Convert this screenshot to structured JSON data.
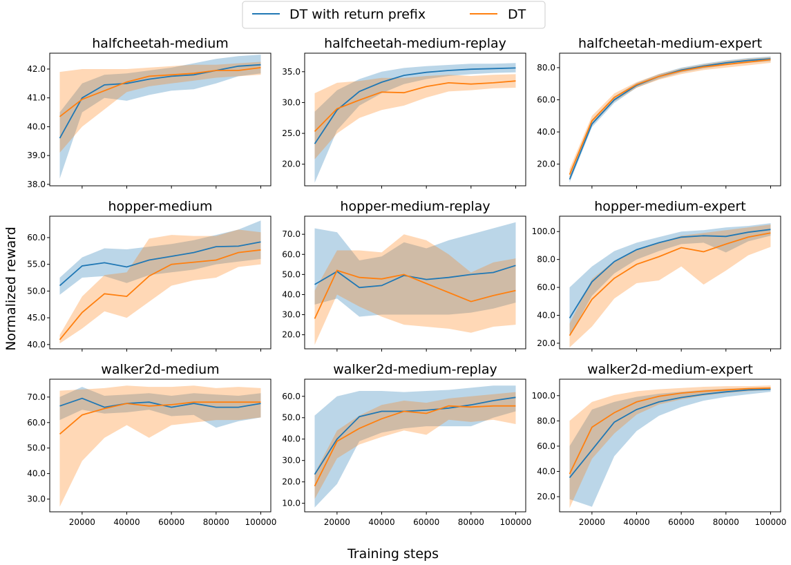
{
  "figure": {
    "xlabel": "Training steps",
    "ylabel": "Normalized reward",
    "x_ticks": [
      "20000",
      "40000",
      "60000",
      "80000",
      "100000"
    ],
    "legend": [
      "DT with return prefix",
      "DT"
    ],
    "legend_location": "top-center"
  },
  "colors": {
    "prefix": "#1f77b4",
    "dt": "#ff7f0e",
    "prefix_band": "#1f77b4",
    "dt_band": "#ff7f0e"
  },
  "chart_data": [
    {
      "type": "line",
      "title": "halfcheetah-medium",
      "x": [
        10000,
        20000,
        30000,
        40000,
        50000,
        60000,
        70000,
        80000,
        90000,
        100000
      ],
      "ylim": [
        37.95,
        42.55
      ],
      "yticks": [
        38.0,
        39.0,
        40.0,
        41.0,
        42.0
      ],
      "ytick_labels": [
        "38.0",
        "39.0",
        "40.0",
        "41.0",
        "42.0"
      ],
      "series": [
        {
          "name": "DT with return prefix",
          "values": [
            39.6,
            41.0,
            41.45,
            41.5,
            41.65,
            41.75,
            41.8,
            41.95,
            42.1,
            42.15
          ],
          "lower": [
            38.2,
            40.5,
            41.0,
            40.9,
            41.1,
            41.25,
            41.3,
            41.5,
            41.75,
            41.85
          ],
          "upper": [
            40.5,
            41.5,
            41.8,
            41.85,
            41.95,
            42.05,
            42.2,
            42.35,
            42.45,
            42.5
          ]
        },
        {
          "name": "DT",
          "values": [
            40.35,
            40.95,
            41.25,
            41.55,
            41.75,
            41.8,
            41.85,
            41.95,
            41.95,
            42.05
          ],
          "lower": [
            39.1,
            40.0,
            40.6,
            41.2,
            41.4,
            41.5,
            41.6,
            41.7,
            41.75,
            41.8
          ],
          "upper": [
            41.9,
            42.0,
            42.0,
            42.0,
            42.05,
            42.1,
            42.15,
            42.15,
            42.2,
            42.25
          ]
        }
      ]
    },
    {
      "type": "line",
      "title": "halfcheetah-medium-replay",
      "x": [
        10000,
        20000,
        30000,
        40000,
        50000,
        60000,
        70000,
        80000,
        90000,
        100000
      ],
      "ylim": [
        16.5,
        38.0
      ],
      "yticks": [
        20.0,
        25.0,
        30.0,
        35.0
      ],
      "ytick_labels": [
        "20.0",
        "25.0",
        "30.0",
        "35.0"
      ],
      "series": [
        {
          "name": "DT with return prefix",
          "values": [
            23.3,
            28.8,
            31.8,
            33.3,
            34.4,
            34.9,
            35.2,
            35.4,
            35.5,
            35.6
          ],
          "lower": [
            17.0,
            25.5,
            29.5,
            31.5,
            33.0,
            33.8,
            34.3,
            34.6,
            34.8,
            34.9
          ],
          "upper": [
            28.5,
            32.0,
            33.8,
            35.0,
            35.6,
            35.9,
            36.1,
            36.3,
            36.3,
            36.4
          ]
        },
        {
          "name": "DT",
          "values": [
            25.3,
            29.0,
            30.4,
            31.7,
            31.6,
            32.6,
            33.2,
            33.0,
            33.2,
            33.5
          ],
          "lower": [
            20.8,
            25.0,
            27.5,
            28.8,
            29.5,
            30.8,
            31.8,
            32.0,
            32.3,
            32.4
          ],
          "upper": [
            31.5,
            33.2,
            33.5,
            34.0,
            34.0,
            34.3,
            34.5,
            34.3,
            34.5,
            34.6
          ]
        }
      ]
    },
    {
      "type": "line",
      "title": "halfcheetah-medium-expert",
      "x": [
        10000,
        20000,
        30000,
        40000,
        50000,
        60000,
        70000,
        80000,
        90000,
        100000
      ],
      "ylim": [
        6.5,
        89.0
      ],
      "yticks": [
        20.0,
        40.0,
        60.0,
        80.0
      ],
      "ytick_labels": [
        "20.0",
        "40.0",
        "60.0",
        "80.0"
      ],
      "series": [
        {
          "name": "DT with return prefix",
          "values": [
            10.5,
            45.0,
            60.0,
            69.0,
            74.5,
            78.5,
            81.0,
            83.0,
            84.5,
            85.5
          ],
          "lower": [
            8.5,
            43.0,
            58.0,
            67.5,
            73.0,
            77.0,
            79.5,
            81.5,
            83.0,
            84.0
          ],
          "upper": [
            12.5,
            47.0,
            62.0,
            70.5,
            76.0,
            80.0,
            82.5,
            84.5,
            86.0,
            87.0
          ]
        },
        {
          "name": "DT",
          "values": [
            13.5,
            47.0,
            61.5,
            69.5,
            74.5,
            78.0,
            80.5,
            82.0,
            83.5,
            85.0
          ],
          "lower": [
            10.5,
            44.5,
            59.0,
            67.5,
            72.5,
            76.0,
            78.5,
            80.0,
            81.5,
            83.0
          ],
          "upper": [
            17.0,
            50.0,
            64.0,
            71.0,
            76.0,
            79.5,
            82.0,
            84.0,
            85.5,
            86.5
          ]
        }
      ]
    },
    {
      "type": "line",
      "title": "hopper-medium",
      "x": [
        10000,
        20000,
        30000,
        40000,
        50000,
        60000,
        70000,
        80000,
        90000,
        100000
      ],
      "ylim": [
        39.2,
        64.0
      ],
      "yticks": [
        40.0,
        45.0,
        50.0,
        55.0,
        60.0
      ],
      "ytick_labels": [
        "40.0",
        "45.0",
        "50.0",
        "55.0",
        "60.0"
      ],
      "series": [
        {
          "name": "DT with return prefix",
          "values": [
            51.0,
            54.7,
            55.3,
            54.5,
            55.8,
            56.5,
            57.2,
            58.3,
            58.4,
            59.2
          ],
          "lower": [
            49.3,
            52.5,
            52.8,
            51.5,
            53.0,
            53.5,
            54.0,
            55.0,
            55.5,
            56.0
          ],
          "upper": [
            52.5,
            56.3,
            58.0,
            57.8,
            58.3,
            58.8,
            59.5,
            60.5,
            61.5,
            63.2
          ]
        },
        {
          "name": "DT",
          "values": [
            40.9,
            46.0,
            49.5,
            49.0,
            52.8,
            55.0,
            55.4,
            55.8,
            57.2,
            57.7
          ],
          "lower": [
            40.2,
            43.0,
            46.2,
            45.0,
            48.0,
            51.0,
            52.0,
            52.5,
            54.5,
            55.0
          ],
          "upper": [
            41.8,
            49.0,
            53.0,
            53.5,
            59.8,
            60.5,
            60.3,
            60.3,
            61.5,
            61.0
          ]
        }
      ]
    },
    {
      "type": "line",
      "title": "hopper-medium-replay",
      "x": [
        10000,
        20000,
        30000,
        40000,
        50000,
        60000,
        70000,
        80000,
        90000,
        100000
      ],
      "ylim": [
        13.0,
        79.0
      ],
      "yticks": [
        20.0,
        30.0,
        40.0,
        50.0,
        60.0,
        70.0
      ],
      "ytick_labels": [
        "20.0",
        "30.0",
        "40.0",
        "50.0",
        "60.0",
        "70.0"
      ],
      "series": [
        {
          "name": "DT with return prefix",
          "values": [
            45.0,
            51.5,
            43.5,
            44.5,
            49.5,
            47.5,
            48.5,
            50.0,
            51.0,
            54.5
          ],
          "lower": [
            35.0,
            38.0,
            29.0,
            30.0,
            30.0,
            30.0,
            30.0,
            31.0,
            33.0,
            36.0
          ],
          "upper": [
            73.0,
            71.0,
            57.0,
            59.0,
            66.0,
            63.0,
            67.0,
            70.0,
            73.0,
            76.0
          ]
        },
        {
          "name": "DT",
          "values": [
            28.0,
            52.0,
            48.5,
            47.8,
            50.0,
            45.5,
            41.0,
            36.5,
            39.5,
            42.0
          ],
          "lower": [
            15.0,
            40.0,
            34.0,
            29.0,
            25.0,
            24.0,
            23.0,
            21.0,
            24.0,
            25.0
          ],
          "upper": [
            42.0,
            62.0,
            62.0,
            61.0,
            70.0,
            67.0,
            60.0,
            51.0,
            56.0,
            58.0
          ]
        }
      ]
    },
    {
      "type": "line",
      "title": "hopper-medium-expert",
      "x": [
        10000,
        20000,
        30000,
        40000,
        50000,
        60000,
        70000,
        80000,
        90000,
        100000
      ],
      "ylim": [
        16.0,
        111.0
      ],
      "yticks": [
        20.0,
        40.0,
        60.0,
        80.0,
        100.0
      ],
      "ytick_labels": [
        "20.0",
        "40.0",
        "60.0",
        "80.0",
        "100.0"
      ],
      "series": [
        {
          "name": "DT with return prefix",
          "values": [
            38.0,
            64.0,
            78.5,
            87.0,
            92.0,
            96.0,
            97.0,
            96.5,
            99.5,
            101.5
          ],
          "lower": [
            25.0,
            54.0,
            70.0,
            80.0,
            86.0,
            91.0,
            92.0,
            85.0,
            93.0,
            97.0
          ],
          "upper": [
            60.0,
            75.0,
            86.0,
            92.0,
            96.0,
            100.0,
            101.0,
            103.0,
            104.0,
            106.0
          ]
        },
        {
          "name": "DT",
          "values": [
            25.5,
            51.5,
            66.5,
            76.5,
            82.0,
            88.5,
            85.5,
            91.0,
            96.0,
            99.0
          ],
          "lower": [
            17.0,
            32.0,
            52.0,
            63.0,
            65.0,
            75.0,
            62.0,
            72.0,
            83.0,
            89.0
          ],
          "upper": [
            34.0,
            66.0,
            79.0,
            87.0,
            92.0,
            97.0,
            99.0,
            101.0,
            103.0,
            105.0
          ]
        }
      ]
    },
    {
      "type": "line",
      "title": "walker2d-medium",
      "x": [
        10000,
        20000,
        30000,
        40000,
        50000,
        60000,
        70000,
        80000,
        90000,
        100000
      ],
      "ylim": [
        25.0,
        77.0
      ],
      "yticks": [
        30.0,
        40.0,
        50.0,
        60.0,
        70.0
      ],
      "ytick_labels": [
        "30.0",
        "40.0",
        "50.0",
        "60.0",
        "70.0"
      ],
      "series": [
        {
          "name": "DT with return prefix",
          "values": [
            66.5,
            69.5,
            66.0,
            67.5,
            68.0,
            66.0,
            67.5,
            66.0,
            66.0,
            67.5
          ],
          "lower": [
            61.0,
            65.0,
            63.5,
            64.0,
            65.0,
            62.5,
            63.0,
            58.0,
            60.5,
            62.0
          ],
          "upper": [
            70.0,
            74.0,
            70.5,
            71.0,
            71.5,
            70.5,
            71.5,
            71.0,
            70.5,
            71.5
          ]
        },
        {
          "name": "DT",
          "values": [
            55.5,
            63.0,
            65.5,
            67.5,
            66.5,
            67.0,
            68.0,
            68.0,
            68.0,
            68.0
          ],
          "lower": [
            27.0,
            45.0,
            54.0,
            59.0,
            54.0,
            59.0,
            60.0,
            61.0,
            61.0,
            62.0
          ],
          "upper": [
            72.5,
            73.0,
            73.5,
            74.5,
            74.0,
            74.0,
            74.5,
            73.5,
            74.0,
            73.5
          ]
        }
      ]
    },
    {
      "type": "line",
      "title": "walker2d-medium-replay",
      "x": [
        10000,
        20000,
        30000,
        40000,
        50000,
        60000,
        70000,
        80000,
        90000,
        100000
      ],
      "ylim": [
        6.0,
        68.0
      ],
      "yticks": [
        10.0,
        20.0,
        30.0,
        40.0,
        50.0,
        60.0
      ],
      "ytick_labels": [
        "10.0",
        "20.0",
        "30.0",
        "40.0",
        "50.0",
        "60.0"
      ],
      "series": [
        {
          "name": "DT with return prefix",
          "values": [
            23.5,
            40.0,
            50.5,
            53.0,
            53.0,
            53.5,
            54.5,
            56.0,
            58.0,
            59.5
          ],
          "lower": [
            8.0,
            19.0,
            39.0,
            43.0,
            45.0,
            46.0,
            46.0,
            46.0,
            50.0,
            53.0
          ],
          "upper": [
            51.0,
            60.0,
            62.5,
            62.5,
            62.0,
            62.5,
            63.0,
            64.0,
            65.0,
            65.0
          ]
        },
        {
          "name": "DT",
          "values": [
            18.0,
            39.0,
            45.0,
            49.5,
            53.0,
            52.0,
            55.5,
            55.0,
            55.5,
            55.5
          ],
          "lower": [
            12.0,
            31.0,
            37.5,
            41.0,
            44.0,
            42.0,
            49.0,
            48.0,
            49.0,
            47.0
          ],
          "upper": [
            24.0,
            44.0,
            51.0,
            56.0,
            58.0,
            57.0,
            59.0,
            60.0,
            61.0,
            62.0
          ]
        }
      ]
    },
    {
      "type": "line",
      "title": "walker2d-medium-expert",
      "x": [
        10000,
        20000,
        30000,
        40000,
        50000,
        60000,
        70000,
        80000,
        90000,
        100000
      ],
      "ylim": [
        8.0,
        113.0
      ],
      "yticks": [
        20.0,
        40.0,
        60.0,
        80.0,
        100.0
      ],
      "ytick_labels": [
        "20.0",
        "40.0",
        "60.0",
        "80.0",
        "100.0"
      ],
      "series": [
        {
          "name": "DT with return prefix",
          "values": [
            35.0,
            57.0,
            79.0,
            89.0,
            95.0,
            98.5,
            101.0,
            103.0,
            104.5,
            105.0
          ],
          "lower": [
            18.0,
            12.0,
            52.0,
            72.0,
            84.0,
            91.0,
            96.0,
            99.0,
            101.0,
            103.0
          ],
          "upper": [
            60.0,
            89.0,
            95.0,
            99.0,
            101.5,
            103.0,
            104.5,
            105.5,
            106.0,
            106.5
          ]
        },
        {
          "name": "DT",
          "values": [
            38.0,
            75.0,
            86.5,
            95.0,
            99.5,
            102.0,
            103.5,
            104.5,
            105.5,
            106.0
          ],
          "lower": [
            11.0,
            50.0,
            70.0,
            85.0,
            93.0,
            97.0,
            100.0,
            102.0,
            103.5,
            104.5
          ],
          "upper": [
            80.0,
            95.0,
            100.5,
            103.5,
            105.0,
            106.0,
            107.0,
            107.5,
            107.5,
            108.0
          ]
        }
      ]
    }
  ]
}
